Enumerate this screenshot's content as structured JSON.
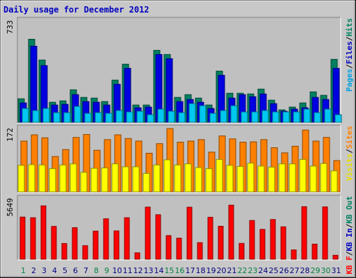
{
  "title": "Daily usage for December 2012",
  "chart_data": [
    {
      "type": "bar",
      "panel": "top",
      "ymax_label": "733",
      "ylim": [
        0,
        733
      ],
      "legend": [
        {
          "text": "Pages",
          "color": "#00a0e0"
        },
        {
          "text": "/",
          "color": "#000000"
        },
        {
          "text": "Files",
          "color": "#0000c0"
        },
        {
          "text": "/",
          "color": "#000000"
        },
        {
          "text": "Hits",
          "color": "#008060"
        }
      ],
      "series": [
        {
          "name": "Hits",
          "color": "#008060",
          "values": [
            170,
            600,
            450,
            145,
            155,
            235,
            180,
            175,
            150,
            305,
            420,
            125,
            125,
            520,
            490,
            180,
            200,
            175,
            125,
            370,
            210,
            210,
            205,
            240,
            160,
            90,
            110,
            140,
            220,
            195,
            455
          ]
        },
        {
          "name": "Files",
          "color": "#0000e0",
          "values": [
            140,
            550,
            410,
            125,
            130,
            200,
            150,
            145,
            125,
            275,
            390,
            105,
            110,
            490,
            460,
            150,
            165,
            145,
            100,
            340,
            175,
            200,
            185,
            205,
            135,
            80,
            95,
            105,
            180,
            165,
            390
          ]
        },
        {
          "name": "Pages",
          "color": "#00c8f0",
          "values": [
            100,
            85,
            100,
            70,
            70,
            115,
            65,
            70,
            65,
            85,
            75,
            80,
            55,
            95,
            80,
            70,
            135,
            120,
            65,
            85,
            120,
            75,
            75,
            85,
            75,
            75,
            75,
            95,
            70,
            95,
            55
          ]
        }
      ]
    },
    {
      "type": "bar",
      "panel": "middle",
      "ymax_label": "172",
      "ylim": [
        0,
        172
      ],
      "legend": [
        {
          "text": "Visits",
          "color": "#e8e000"
        },
        {
          "text": "/",
          "color": "#000000"
        },
        {
          "text": "Sites",
          "color": "#ff8000"
        }
      ],
      "series": [
        {
          "name": "Sites",
          "color": "#ff8000",
          "values": [
            138,
            155,
            147,
            96,
            115,
            148,
            156,
            113,
            142,
            155,
            145,
            138,
            105,
            131,
            172,
            135,
            138,
            142,
            108,
            152,
            144,
            135,
            136,
            142,
            120,
            106,
            124,
            168,
            138,
            148,
            85
          ]
        },
        {
          "name": "Visits",
          "color": "#ffff00",
          "values": [
            72,
            74,
            73,
            63,
            73,
            76,
            53,
            64,
            65,
            76,
            68,
            68,
            50,
            73,
            87,
            73,
            76,
            66,
            63,
            88,
            72,
            69,
            78,
            70,
            67,
            76,
            76,
            88,
            70,
            77,
            57
          ]
        }
      ]
    },
    {
      "type": "bar",
      "panel": "bottom",
      "ymax_label": "5649",
      "ylim": [
        0,
        5649
      ],
      "legend": [
        {
          "text": "KB F",
          "color": "#ff0000"
        },
        {
          "text": "/",
          "color": "#000000"
        },
        {
          "text": "KB In",
          "color": "#0000c0"
        },
        {
          "text": "/",
          "color": "#000000"
        },
        {
          "text": "KB Out",
          "color": "#008060"
        }
      ],
      "series": [
        {
          "name": "KB F",
          "color": "#ff0000",
          "values": [
            3940,
            3880,
            4990,
            3070,
            1470,
            2950,
            1270,
            2630,
            3780,
            2650,
            3880,
            600,
            4870,
            4160,
            2210,
            1970,
            4860,
            1550,
            3920,
            3080,
            5050,
            1480,
            3620,
            2790,
            3710,
            3030,
            870,
            4910,
            1410,
            4890,
            370
          ]
        }
      ]
    }
  ],
  "x_axis": {
    "categories": [
      "1",
      "2",
      "3",
      "4",
      "5",
      "6",
      "7",
      "8",
      "9",
      "10",
      "11",
      "12",
      "13",
      "14",
      "15",
      "16",
      "17",
      "18",
      "19",
      "20",
      "21",
      "22",
      "23",
      "24",
      "25",
      "26",
      "27",
      "28",
      "29",
      "30",
      "31"
    ],
    "weekend_indices": [
      0,
      7,
      8,
      14,
      15,
      21,
      22,
      28,
      29
    ],
    "weekend_color": "#008040",
    "weekday_color": "#000080"
  }
}
